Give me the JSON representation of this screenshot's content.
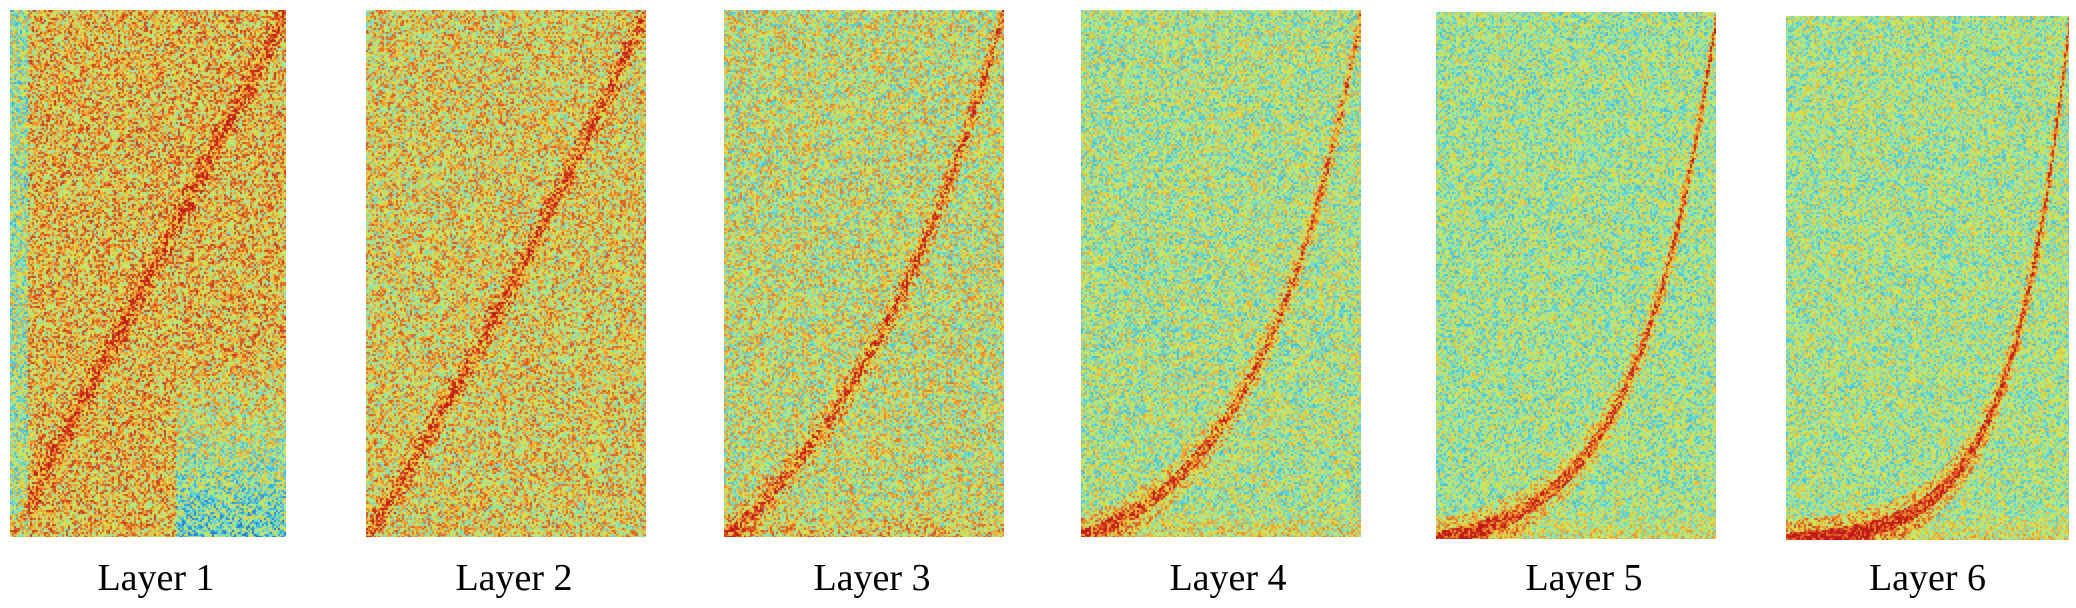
{
  "figure": {
    "colormap": [
      "#1e4fd6",
      "#26a3e8",
      "#5fd6d8",
      "#a6e89a",
      "#d9e64a",
      "#f0a838",
      "#e06024",
      "#c01818"
    ],
    "panels": [
      {
        "label": "Layer 1",
        "icon": "attention-heatmap"
      },
      {
        "label": "Layer 2",
        "icon": "attention-heatmap"
      },
      {
        "label": "Layer 3",
        "icon": "attention-heatmap"
      },
      {
        "label": "Layer 4",
        "icon": "attention-heatmap"
      },
      {
        "label": "Layer 5",
        "icon": "attention-heatmap"
      },
      {
        "label": "Layer 6",
        "icon": "attention-heatmap"
      }
    ]
  }
}
